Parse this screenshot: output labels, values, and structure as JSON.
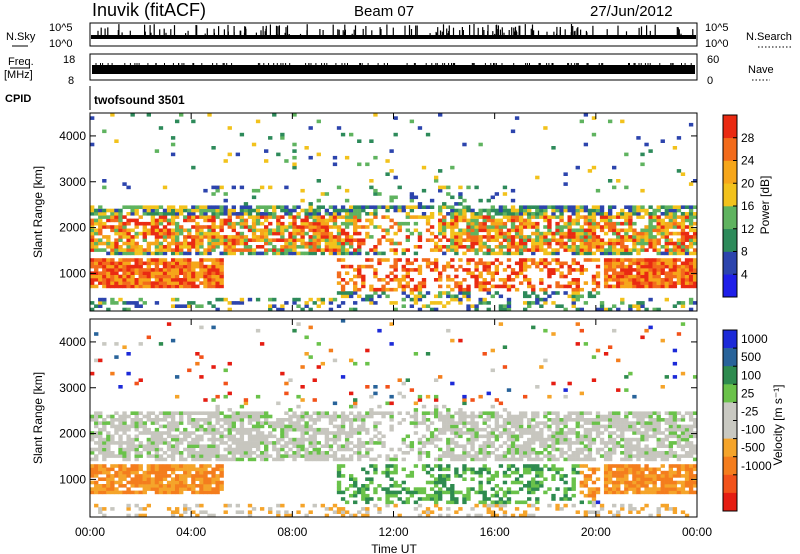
{
  "header": {
    "station": "Inuvik (fitACF)",
    "beam": "Beam 07",
    "date": "27/Jun/2012"
  },
  "left_labels": {
    "nsky": "N.Sky",
    "freq": "Freq.",
    "freq_unit": "[MHz]",
    "cpid": "CPID"
  },
  "right_labels": {
    "nsearch": "N.Search",
    "nave": "Nave"
  },
  "cpid_text": "twofsound 3501",
  "colors": {
    "power": [
      "#1f1fe8",
      "#2c44ad",
      "#2d8a5a",
      "#5fb35f",
      "#f2c21c",
      "#f6a61a",
      "#f36b1b",
      "#ea2a12"
    ],
    "velocity": [
      "#1c2ad8",
      "#28639a",
      "#2e8b4f",
      "#6ac24a",
      "#c9c9c2",
      "#c9c9c2",
      "#f5a42a",
      "#f47d1d",
      "#f2521a",
      "#e51d12"
    ],
    "grey_scatter": "#c7c6bf",
    "white": "#ffffff"
  },
  "chart_data": [
    {
      "type": "line",
      "panel": "noise",
      "ylabel_left": "N.Sky",
      "ylabel_right": "N.Search",
      "left_ticks": [
        "10^5",
        "10^0"
      ],
      "right_ticks": [
        "10^5",
        "10^0"
      ],
      "scale": "log",
      "description_series": "noise level vs time"
    },
    {
      "type": "line",
      "panel": "frequency",
      "ylabel_left": "Freq. [MHz]",
      "ylabel_right": "Nave",
      "left_ticks": [
        18,
        8
      ],
      "right_ticks": [
        60,
        0
      ],
      "series": [
        {
          "axis": "left",
          "values_range": [
            10.5,
            11.2
          ]
        }
      ]
    },
    {
      "type": "heatmap",
      "panel": "power",
      "xlabel": "",
      "ylabel": "Slant Range [km]",
      "ylim": [
        180,
        4500
      ],
      "y_ticks": [
        1000,
        2000,
        3000,
        4000
      ],
      "colorbar_label": "Power [dB]",
      "colorbar_ticks": [
        4,
        8,
        12,
        16,
        20,
        24,
        28
      ],
      "colorbar_range": [
        0,
        32
      ]
    },
    {
      "type": "heatmap",
      "panel": "velocity",
      "xlabel": "Time UT",
      "ylabel": "Slant Range [km]",
      "ylim": [
        180,
        4500
      ],
      "y_ticks": [
        1000,
        2000,
        3000,
        4000
      ],
      "x_ticks": [
        "00:00",
        "04:00",
        "08:00",
        "12:00",
        "16:00",
        "20:00",
        "00:00"
      ],
      "colorbar_label": "Velocity [m s⁻¹]",
      "colorbar_ticks": [
        1000,
        500,
        100,
        25,
        -25,
        -100,
        -500,
        -1000
      ]
    }
  ]
}
